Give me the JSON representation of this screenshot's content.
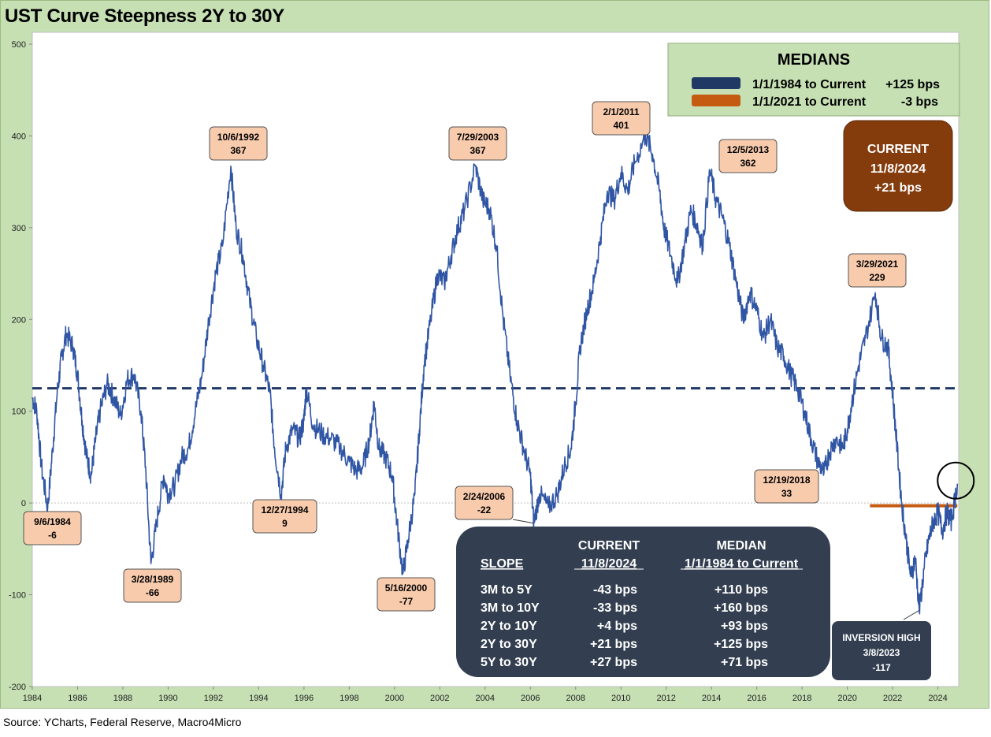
{
  "title": "UST Curve Steepness 2Y to 30Y",
  "source": "Source: YCharts, Federal Reserve, Macro4Micro",
  "colors": {
    "background": "#c6e0b4",
    "plot_area": "#ffffff",
    "series": "#2f55a4",
    "median_1984": "#1f3864",
    "median_2021": "#c55a11",
    "current_box": "#843c0c",
    "annotation_fill": "#f8cbad",
    "table_box": "#333f50"
  },
  "chart_data": {
    "type": "line",
    "title": "UST Curve Steepness 2Y to 30Y",
    "xlabel": "",
    "ylabel": "",
    "xlim": [
      1984.0,
      2024.92
    ],
    "ylim": [
      -200,
      500
    ],
    "y_ticks": [
      500,
      400,
      300,
      200,
      100,
      0,
      -100,
      -200
    ],
    "x_ticks": [
      "1984",
      "1986",
      "1988",
      "1990",
      "1992",
      "1994",
      "1996",
      "1998",
      "2000",
      "2002",
      "2004",
      "2006",
      "2008",
      "2010",
      "2012",
      "2014",
      "2016",
      "2018",
      "2020",
      "2022",
      "2024"
    ],
    "grid": false,
    "series": [
      {
        "values": [
          [
            1984.0,
            115
          ],
          [
            1984.2,
            100
          ],
          [
            1984.4,
            40
          ],
          [
            1984.68,
            -6
          ],
          [
            1984.9,
            60
          ],
          [
            1985.1,
            120
          ],
          [
            1985.3,
            160
          ],
          [
            1985.5,
            185
          ],
          [
            1985.8,
            170
          ],
          [
            1986.0,
            140
          ],
          [
            1986.2,
            90
          ],
          [
            1986.4,
            50
          ],
          [
            1986.6,
            30
          ],
          [
            1986.8,
            70
          ],
          [
            1987.0,
            100
          ],
          [
            1987.3,
            130
          ],
          [
            1987.6,
            115
          ],
          [
            1987.9,
            95
          ],
          [
            1988.2,
            135
          ],
          [
            1988.5,
            140
          ],
          [
            1988.8,
            100
          ],
          [
            1989.0,
            40
          ],
          [
            1989.24,
            -66
          ],
          [
            1989.5,
            -20
          ],
          [
            1989.8,
            30
          ],
          [
            1990.0,
            10
          ],
          [
            1990.3,
            20
          ],
          [
            1990.6,
            50
          ],
          [
            1990.9,
            60
          ],
          [
            1991.2,
            100
          ],
          [
            1991.5,
            140
          ],
          [
            1991.8,
            200
          ],
          [
            1992.1,
            250
          ],
          [
            1992.4,
            280
          ],
          [
            1992.77,
            367
          ],
          [
            1993.0,
            300
          ],
          [
            1993.3,
            270
          ],
          [
            1993.6,
            220
          ],
          [
            1993.9,
            180
          ],
          [
            1994.2,
            150
          ],
          [
            1994.5,
            120
          ],
          [
            1994.7,
            60
          ],
          [
            1994.99,
            9
          ],
          [
            1995.2,
            60
          ],
          [
            1995.5,
            80
          ],
          [
            1995.8,
            70
          ],
          [
            1996.0,
            90
          ],
          [
            1996.1,
            125
          ],
          [
            1996.4,
            85
          ],
          [
            1996.8,
            75
          ],
          [
            1997.2,
            70
          ],
          [
            1997.6,
            60
          ],
          [
            1998.0,
            45
          ],
          [
            1998.3,
            35
          ],
          [
            1998.6,
            40
          ],
          [
            1998.9,
            70
          ],
          [
            1999.1,
            110
          ],
          [
            1999.3,
            60
          ],
          [
            1999.6,
            50
          ],
          [
            1999.9,
            30
          ],
          [
            2000.1,
            -20
          ],
          [
            2000.37,
            -77
          ],
          [
            2000.6,
            -40
          ],
          [
            2000.9,
            10
          ],
          [
            2001.1,
            80
          ],
          [
            2001.3,
            150
          ],
          [
            2001.6,
            200
          ],
          [
            2001.9,
            250
          ],
          [
            2002.2,
            240
          ],
          [
            2002.5,
            270
          ],
          [
            2002.8,
            300
          ],
          [
            2003.1,
            320
          ],
          [
            2003.57,
            367
          ],
          [
            2003.9,
            330
          ],
          [
            2004.2,
            320
          ],
          [
            2004.5,
            280
          ],
          [
            2004.8,
            200
          ],
          [
            2005.1,
            140
          ],
          [
            2005.4,
            90
          ],
          [
            2005.7,
            60
          ],
          [
            2006.0,
            30
          ],
          [
            2006.15,
            -22
          ],
          [
            2006.4,
            10
          ],
          [
            2006.8,
            -5
          ],
          [
            2007.2,
            10
          ],
          [
            2007.5,
            40
          ],
          [
            2007.8,
            60
          ],
          [
            2008.0,
            110
          ],
          [
            2008.2,
            170
          ],
          [
            2008.5,
            210
          ],
          [
            2008.8,
            240
          ],
          [
            2009.1,
            290
          ],
          [
            2009.4,
            340
          ],
          [
            2009.7,
            330
          ],
          [
            2010.0,
            360
          ],
          [
            2010.3,
            340
          ],
          [
            2010.6,
            370
          ],
          [
            2011.09,
            401
          ],
          [
            2011.4,
            380
          ],
          [
            2011.7,
            340
          ],
          [
            2011.9,
            300
          ],
          [
            2012.2,
            270
          ],
          [
            2012.5,
            240
          ],
          [
            2012.8,
            280
          ],
          [
            2013.1,
            320
          ],
          [
            2013.4,
            300
          ],
          [
            2013.6,
            280
          ],
          [
            2013.93,
            362
          ],
          [
            2014.2,
            330
          ],
          [
            2014.5,
            310
          ],
          [
            2014.8,
            280
          ],
          [
            2015.1,
            240
          ],
          [
            2015.4,
            200
          ],
          [
            2015.7,
            230
          ],
          [
            2016.0,
            210
          ],
          [
            2016.3,
            180
          ],
          [
            2016.6,
            200
          ],
          [
            2016.9,
            170
          ],
          [
            2017.2,
            160
          ],
          [
            2017.5,
            140
          ],
          [
            2017.8,
            125
          ],
          [
            2018.1,
            100
          ],
          [
            2018.4,
            70
          ],
          [
            2018.7,
            45
          ],
          [
            2018.97,
            33
          ],
          [
            2019.2,
            55
          ],
          [
            2019.5,
            70
          ],
          [
            2019.8,
            60
          ],
          [
            2020.0,
            80
          ],
          [
            2020.2,
            110
          ],
          [
            2020.5,
            150
          ],
          [
            2020.8,
            180
          ],
          [
            2021.24,
            229
          ],
          [
            2021.5,
            180
          ],
          [
            2021.8,
            170
          ],
          [
            2022.0,
            120
          ],
          [
            2022.2,
            60
          ],
          [
            2022.4,
            0
          ],
          [
            2022.6,
            -40
          ],
          [
            2022.8,
            -80
          ],
          [
            2023.0,
            -60
          ],
          [
            2023.18,
            -117
          ],
          [
            2023.4,
            -70
          ],
          [
            2023.6,
            -40
          ],
          [
            2023.8,
            -20
          ],
          [
            2024.0,
            -10
          ],
          [
            2024.2,
            -30
          ],
          [
            2024.4,
            -10
          ],
          [
            2024.6,
            -20
          ],
          [
            2024.86,
            21
          ]
        ]
      }
    ],
    "medians": [
      {
        "label": "1/1/1984 to Current",
        "value_label": "+125 bps",
        "value": 125,
        "start": 1984.0,
        "end": 2024.86
      },
      {
        "label": "1/1/2021 to Current",
        "value_label": "-3 bps",
        "value": -3,
        "start": 2021.0,
        "end": 2024.86
      }
    ],
    "annotations": [
      {
        "date": "9/6/1984",
        "value": "-6",
        "x": 1984.68,
        "y": -6
      },
      {
        "date": "3/28/1989",
        "value": "-66",
        "x": 1989.24,
        "y": -66
      },
      {
        "date": "10/6/1992",
        "value": "367",
        "x": 1992.77,
        "y": 367
      },
      {
        "date": "12/27/1994",
        "value": "9",
        "x": 1994.99,
        "y": 9
      },
      {
        "date": "5/16/2000",
        "value": "-77",
        "x": 2000.37,
        "y": -77
      },
      {
        "date": "7/29/2003",
        "value": "367",
        "x": 2003.57,
        "y": 367
      },
      {
        "date": "2/24/2006",
        "value": "-22",
        "x": 2006.15,
        "y": -22
      },
      {
        "date": "2/1/2011",
        "value": "401",
        "x": 2011.09,
        "y": 401
      },
      {
        "date": "12/5/2013",
        "value": "362",
        "x": 2013.93,
        "y": 362
      },
      {
        "date": "12/19/2018",
        "value": "33",
        "x": 2018.97,
        "y": 33
      },
      {
        "date": "3/29/2021",
        "value": "229",
        "x": 2021.24,
        "y": 229
      }
    ],
    "legend": {
      "title": "MEDIANS",
      "placement": "top-right"
    }
  },
  "current_box": {
    "line1": "CURRENT",
    "line2": "11/8/2024",
    "line3": "+21 bps"
  },
  "inversion_box": {
    "line1": "INVERSION HIGH",
    "line2": "3/8/2023",
    "line3": "-117",
    "x": 2023.18,
    "y": -117
  },
  "slope_table": {
    "header_row1": [
      "",
      "CURRENT",
      "MEDIAN"
    ],
    "header_row2": [
      "SLOPE",
      "11/8/2024",
      "1/1/1984 to Current"
    ],
    "rows": [
      [
        "3M to 5Y",
        "-43 bps",
        "+110 bps"
      ],
      [
        "3M to 10Y",
        "-33 bps",
        "+160 bps"
      ],
      [
        "2Y to 10Y",
        "+4 bps",
        "+93 bps"
      ],
      [
        "2Y to 30Y",
        "+21 bps",
        "+125 bps"
      ],
      [
        "5Y to 30Y",
        "+27 bps",
        "+71 bps"
      ]
    ]
  }
}
